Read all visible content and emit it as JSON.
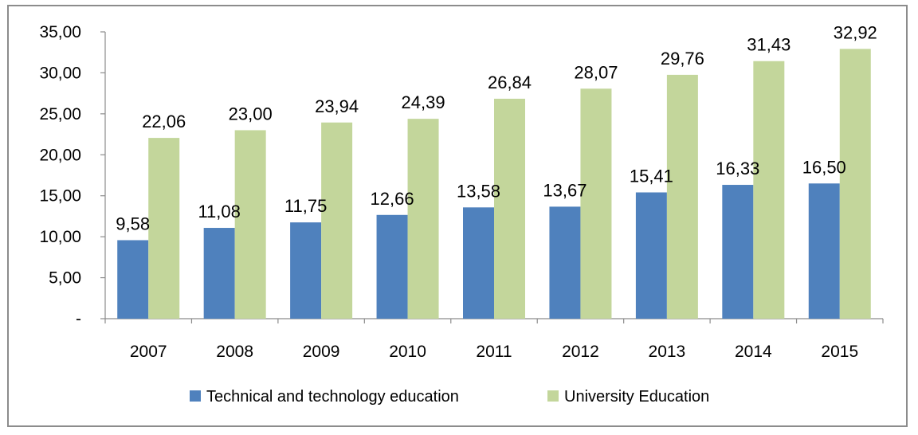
{
  "chart_data": {
    "type": "bar",
    "title": "",
    "xlabel": "",
    "ylabel": "",
    "categories": [
      "2007",
      "2008",
      "2009",
      "2010",
      "2011",
      "2012",
      "2013",
      "2014",
      "2015"
    ],
    "series": [
      {
        "name": "Technical and technology education",
        "values": [
          9.58,
          11.08,
          11.75,
          12.66,
          13.58,
          13.67,
          15.41,
          16.33,
          16.5
        ],
        "labels": [
          "9,58",
          "11,08",
          "11,75",
          "12,66",
          "13,58",
          "13,67",
          "15,41",
          "16,33",
          "16,50"
        ],
        "color": "#4f81bd"
      },
      {
        "name": "University Education",
        "values": [
          22.06,
          23.0,
          23.94,
          24.39,
          26.84,
          28.07,
          29.76,
          31.43,
          32.92
        ],
        "labels": [
          "22,06",
          "23,00",
          "23,94",
          "24,39",
          "26,84",
          "28,07",
          "29,76",
          "31,43",
          "32,92"
        ],
        "color": "#c3d69b"
      }
    ],
    "ylim": [
      0,
      35
    ],
    "yticks": [
      0,
      5,
      10,
      15,
      20,
      25,
      30,
      35
    ],
    "ytick_labels": [
      "-",
      "5,00",
      "10,00",
      "15,00",
      "20,00",
      "25,00",
      "30,00",
      "35,00"
    ],
    "grid": false,
    "legend_position": "bottom"
  }
}
